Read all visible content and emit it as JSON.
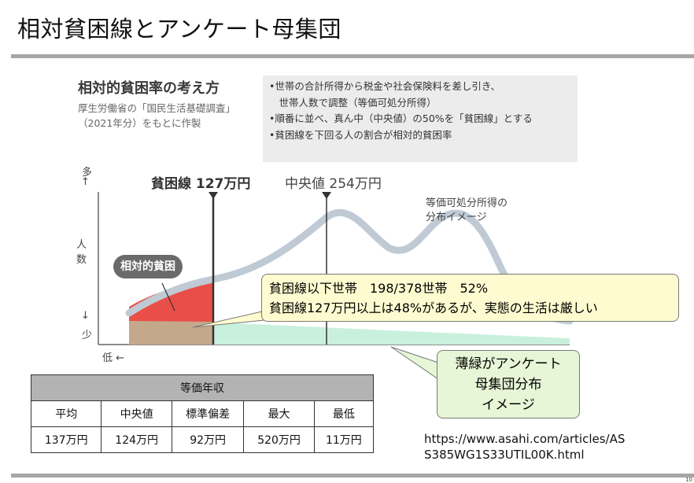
{
  "slide": {
    "title": "相対貧困線とアンケート母集団",
    "page_number": "10",
    "source_url_line1": "https://www.asahi.com/articles/AS",
    "source_url_line2": "S385WG1S33UTIL00K.html"
  },
  "figure": {
    "title": "相対的貧困率の考え方",
    "subtitle_line1": "厚生労働省の「国民生活基礎調査」",
    "subtitle_line2": "（2021年分）をもとに作製",
    "explanations": [
      "•世帯の合計所得から税金や社会保険料を差し引き、",
      "　世帯人数で調整（等価可処分所得）",
      "•順番に並べ、真ん中（中央値）の50%を「貧困線」とする",
      "•貧困線を下回る人の割合が相対的貧困率"
    ],
    "y_axis_top": "多",
    "y_axis_arrow_up": "↑",
    "y_axis_char1": "人",
    "y_axis_char2": "数",
    "y_axis_arrow_down": "↓",
    "y_axis_bottom": "少",
    "x_axis_label": "低 ←",
    "poverty_line_label": "貧困線 127万円",
    "median_label": "中央値 254万円",
    "curve_label_line1": "等価可処分所得の",
    "curve_label_line2": "分布イメージ",
    "poverty_badge": "相対的貧困",
    "colors": {
      "curve": "#bfcad4",
      "poverty_fill": "#e94f48",
      "green_fill": "#c9f0dd",
      "badge": "#6a6a6a"
    }
  },
  "callout_yellow": {
    "line1": "貧困線以下世帯　198/378世帯　52%",
    "line2": "貧困線127万円以上は48%があるが、実態の生活は厳しい"
  },
  "callout_green": {
    "line1": "薄緑がアンケート",
    "line2": "母集団分布",
    "line3": "イメージ"
  },
  "table": {
    "title": "等価年収",
    "headers": [
      "平均",
      "中央値",
      "標準偏差",
      "最大",
      "最低"
    ],
    "values": [
      "137万円",
      "124万円",
      "92万円",
      "520万円",
      "11万円"
    ]
  }
}
